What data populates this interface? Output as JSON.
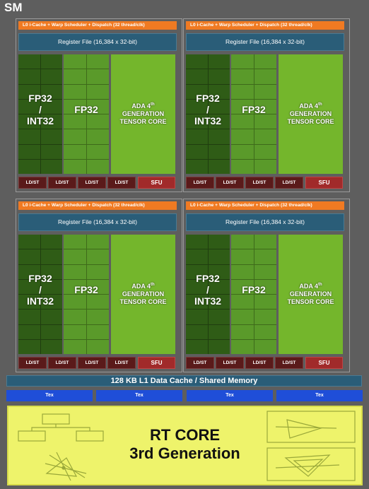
{
  "sm_title": "SM",
  "partition": {
    "l0_label": "L0 i-Cache + Warp Scheduler + Dispatch (32 thread/clk)",
    "register_file": "Register File (16,384 x 32-bit)",
    "fp32_int32_line1": "FP32",
    "fp32_int32_line2": "/",
    "fp32_int32_line3": "INT32",
    "fp32": "FP32",
    "tensor_line1": "ADA 4",
    "tensor_sup": "th",
    "tensor_line2": "GENERATION",
    "tensor_line3": "TENSOR CORE",
    "ldst": "LD/ST",
    "sfu": "SFU"
  },
  "l1_cache": "128 KB L1 Data Cache / Shared Memory",
  "tex_units": [
    "Tex",
    "Tex",
    "Tex",
    "Tex"
  ],
  "rt_core": {
    "line1": "RT CORE",
    "line2": "3rd Generation"
  },
  "colors": {
    "background": "#5e5e5e",
    "l0": "#f07a22",
    "register_file": "#2a5d78",
    "int_cores": "#2f5c16",
    "fp_cores": "#5a9a2a",
    "tensor": "#74b62c",
    "ldst": "#5a1a1a",
    "sfu": "#a12a2a",
    "tex": "#1f4ed8",
    "rt_core": "#eef36b"
  }
}
